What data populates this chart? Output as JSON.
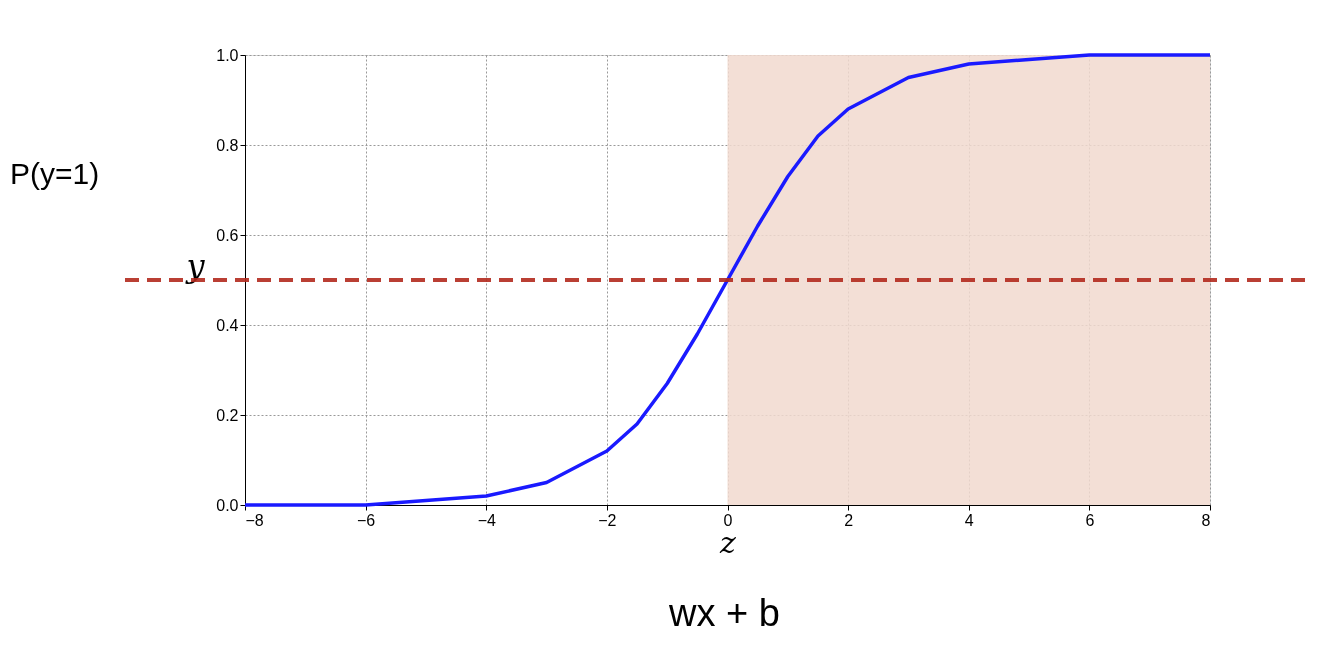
{
  "chart_data": {
    "type": "line",
    "xlabel": "z",
    "ylabel": "y",
    "x": [
      -8,
      -6,
      -5,
      -4,
      -3,
      -2,
      -1.5,
      -1,
      -0.5,
      0,
      0.5,
      1,
      1.5,
      2,
      3,
      4,
      5,
      6,
      8
    ],
    "series": [
      {
        "color": "#1a1aff",
        "values": [
          0.0,
          0.0,
          0.01,
          0.02,
          0.05,
          0.12,
          0.18,
          0.27,
          0.38,
          0.5,
          0.62,
          0.73,
          0.82,
          0.88,
          0.95,
          0.98,
          0.99,
          1.0,
          1.0
        ]
      }
    ],
    "xlim": [
      -8,
      8
    ],
    "xticks": [
      -8,
      -6,
      -4,
      -2,
      0,
      2,
      4,
      6,
      8
    ],
    "ylim": [
      0,
      1
    ],
    "yticks": [
      {
        "value": 0,
        "label": "0.0"
      },
      {
        "value": 0.2,
        "label": "0.2"
      },
      {
        "value": 0.4,
        "label": "0.4"
      },
      {
        "value": 0.6,
        "label": "0.6"
      },
      {
        "value": 0.8,
        "label": "0.8"
      },
      {
        "value": 1,
        "label": "1.0"
      }
    ],
    "grid": true,
    "marker": "none",
    "line_style": "solid",
    "ref_lines": [
      {
        "axis": "y",
        "value": 0.5,
        "color": "#b22a1e",
        "line_style": "dashed"
      }
    ],
    "bands": [
      {
        "axis": "x",
        "from": 0,
        "to": 8,
        "color": "#f1d9cf"
      }
    ],
    "annotations": [
      "P(y=1)",
      "wx + b"
    ]
  }
}
